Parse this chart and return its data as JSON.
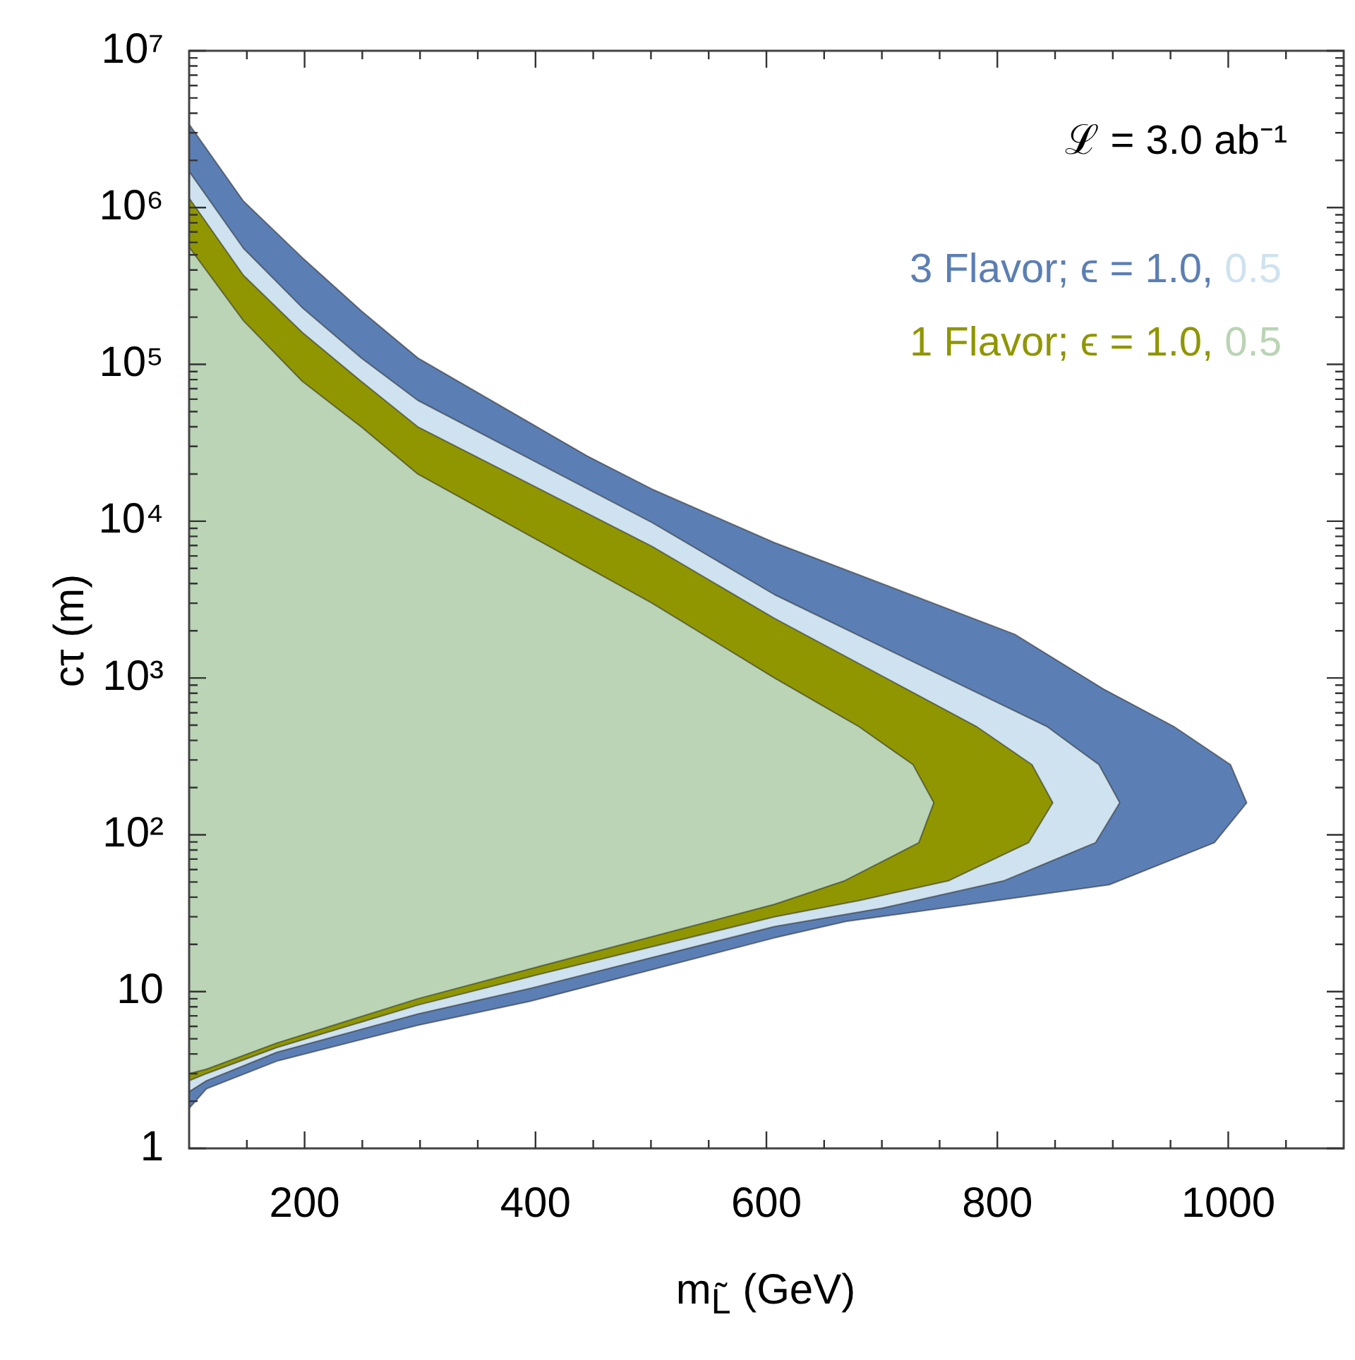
{
  "chart_data": {
    "type": "area",
    "xlabel": "m$_{L̃}$ (GeV)",
    "ylabel": "cτ (m)",
    "log": "y",
    "legend": "top right",
    "grid": false,
    "annotations": [
      "ℒ = 3.0 ab⁻¹"
    ],
    "xlim": [
      100,
      1100
    ],
    "xticks": [
      {
        "value": 150,
        "label": null
      },
      200,
      {
        "value": 250,
        "label": null
      },
      {
        "value": 300,
        "label": null
      },
      {
        "value": 350,
        "label": null
      },
      400,
      {
        "value": 450,
        "label": null
      },
      {
        "value": 500,
        "label": null
      },
      {
        "value": 550,
        "label": null
      },
      600,
      {
        "value": 650,
        "label": null
      },
      {
        "value": 700,
        "label": null
      },
      {
        "value": 750,
        "label": null
      },
      800,
      {
        "value": 850,
        "label": null
      },
      {
        "value": 900,
        "label": null
      },
      {
        "value": 950,
        "label": null
      },
      1000,
      {
        "value": 1050,
        "label": null
      }
    ],
    "ylim": [
      1,
      10000000
    ],
    "yticks": [
      1,
      {
        "value": 2,
        "label": null
      },
      {
        "value": 3,
        "label": null
      },
      {
        "value": 4,
        "label": null
      },
      {
        "value": 5,
        "label": null
      },
      {
        "value": 6,
        "label": null
      },
      {
        "value": 7,
        "label": null
      },
      {
        "value": 8,
        "label": null
      },
      {
        "value": 9,
        "label": null
      },
      10,
      {
        "value": 20,
        "label": null
      },
      {
        "value": 30,
        "label": null
      },
      {
        "value": 40,
        "label": null
      },
      {
        "value": 50,
        "label": null
      },
      {
        "value": 60,
        "label": null
      },
      {
        "value": 70,
        "label": null
      },
      {
        "value": 80,
        "label": null
      },
      {
        "value": 90,
        "label": null
      },
      {
        "value": 100,
        "label": "10²"
      },
      {
        "value": 200,
        "label": null
      },
      {
        "value": 300,
        "label": null
      },
      {
        "value": 400,
        "label": null
      },
      {
        "value": 500,
        "label": null
      },
      {
        "value": 600,
        "label": null
      },
      {
        "value": 700,
        "label": null
      },
      {
        "value": 800,
        "label": null
      },
      {
        "value": 900,
        "label": null
      },
      {
        "value": 1000,
        "label": "10³"
      },
      {
        "value": 2000,
        "label": null
      },
      {
        "value": 3000,
        "label": null
      },
      {
        "value": 4000,
        "label": null
      },
      {
        "value": 5000,
        "label": null
      },
      {
        "value": 6000,
        "label": null
      },
      {
        "value": 7000,
        "label": null
      },
      {
        "value": 8000,
        "label": null
      },
      {
        "value": 9000,
        "label": null
      },
      {
        "value": 10000,
        "label": "10⁴"
      },
      {
        "value": 20000,
        "label": null
      },
      {
        "value": 30000,
        "label": null
      },
      {
        "value": 40000,
        "label": null
      },
      {
        "value": 50000,
        "label": null
      },
      {
        "value": 60000,
        "label": null
      },
      {
        "value": 70000,
        "label": null
      },
      {
        "value": 80000,
        "label": null
      },
      {
        "value": 90000,
        "label": null
      },
      {
        "value": 100000,
        "label": "10⁵"
      },
      {
        "value": 200000,
        "label": null
      },
      {
        "value": 300000,
        "label": null
      },
      {
        "value": 400000,
        "label": null
      },
      {
        "value": 500000,
        "label": null
      },
      {
        "value": 600000,
        "label": null
      },
      {
        "value": 700000,
        "label": null
      },
      {
        "value": 800000,
        "label": null
      },
      {
        "value": 900000,
        "label": null
      },
      {
        "value": 1000000,
        "label": "10⁶"
      },
      {
        "value": 2000000,
        "label": null
      },
      {
        "value": 3000000,
        "label": null
      },
      {
        "value": 4000000,
        "label": null
      },
      {
        "value": 5000000,
        "label": null
      },
      {
        "value": 6000000,
        "label": null
      },
      {
        "value": 7000000,
        "label": null
      },
      {
        "value": 8000000,
        "label": null
      },
      {
        "value": 9000000,
        "label": null
      },
      {
        "value": 10000000,
        "label": "10⁷"
      }
    ],
    "series": [
      {
        "name": "3 Flavor; ϵ = 1.0,",
        "color": "#5b7fb4",
        "x": [
          100,
          147,
          198,
          249,
          298,
          445,
          501,
          607,
          815,
          892,
          953,
          1002,
          1016,
          988,
          897,
          669,
          607,
          396,
          298,
          176,
          115,
          100
        ],
        "values": [
          3400000,
          1100000,
          480000,
          220000,
          110000,
          26000,
          16000,
          7300,
          1900,
          850,
          490,
          280,
          160,
          89,
          48,
          28,
          22,
          8.7,
          6.1,
          3.6,
          2.4,
          1.8
        ]
      },
      {
        "name": "0.5",
        "color": "#cfe2ef",
        "x": [
          100,
          147,
          198,
          249,
          298,
          501,
          607,
          843,
          888,
          906,
          885,
          806,
          700,
          607,
          396,
          298,
          176,
          115,
          100
        ],
        "values": [
          1700000,
          550000,
          230000,
          110000,
          59000,
          9800,
          3400,
          490,
          280,
          160,
          89,
          51,
          34,
          26,
          10.5,
          7.2,
          4.1,
          2.7,
          2.3
        ]
      },
      {
        "name": "1 Flavor; ϵ = 1.0,",
        "color": "#8f9600",
        "x": [
          100,
          147,
          198,
          249,
          298,
          501,
          607,
          782,
          830,
          848,
          827,
          758,
          680,
          607,
          396,
          298,
          176,
          115,
          100
        ],
        "values": [
          1150000,
          370000,
          160000,
          78000,
          40000,
          6900,
          2400,
          490,
          280,
          160,
          89,
          51,
          38,
          30,
          12.5,
          8.2,
          4.4,
          3.0,
          2.7
        ]
      },
      {
        "name": "0.5",
        "color": "#bad4b5",
        "x": [
          100,
          147,
          198,
          249,
          298,
          501,
          607,
          680,
          727,
          745,
          732,
          668,
          607,
          396,
          298,
          176,
          115,
          100
        ],
        "values": [
          560000,
          190000,
          78000,
          40000,
          20000,
          3000,
          1000,
          490,
          280,
          160,
          89,
          51,
          36,
          14,
          9,
          4.7,
          3.2,
          3.0
        ]
      }
    ]
  }
}
